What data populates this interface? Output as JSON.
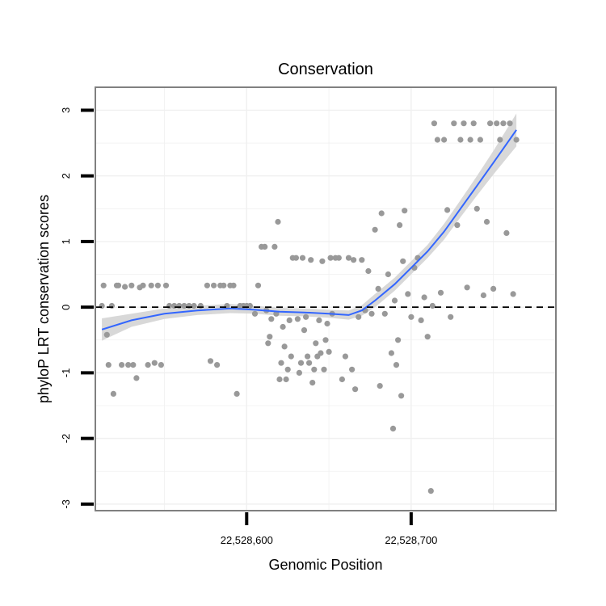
{
  "chart_data": {
    "type": "scatter",
    "title": "Conservation",
    "xlabel": "Genomic Position",
    "ylabel": "phyloP LRT conservation scores",
    "xlim": [
      22528508,
      22528788
    ],
    "ylim": [
      -3.1,
      3.35
    ],
    "x_ticks": [
      22528600,
      22528700
    ],
    "x_tick_labels": [
      "22,528,600",
      "22,528,700"
    ],
    "y_ticks": [
      -3,
      -2,
      -1,
      0,
      1,
      2,
      3
    ],
    "y_tick_labels": [
      "-3",
      "-2",
      "-1",
      "0",
      "1",
      "2",
      "3"
    ],
    "reference_line_y": 0,
    "grid": true,
    "colors": {
      "points": "#999999",
      "smooth_line": "#3366ff",
      "confidence_band": "#d4d4d4",
      "reference_line": "#000000",
      "panel_border": "#808080",
      "grid": "#f0f0f0"
    },
    "points": [
      [
        22528512,
        0.02
      ],
      [
        22528513,
        0.33
      ],
      [
        22528515,
        -0.42
      ],
      [
        22528516,
        -0.88
      ],
      [
        22528518,
        0.02
      ],
      [
        22528519,
        -1.32
      ],
      [
        22528521,
        0.33
      ],
      [
        22528522,
        0.33
      ],
      [
        22528524,
        -0.88
      ],
      [
        22528526,
        0.31
      ],
      [
        22528528,
        -0.88
      ],
      [
        22528530,
        0.33
      ],
      [
        22528531,
        -0.88
      ],
      [
        22528533,
        -1.08
      ],
      [
        22528535,
        0.3
      ],
      [
        22528537,
        0.33
      ],
      [
        22528540,
        -0.88
      ],
      [
        22528542,
        0.33
      ],
      [
        22528544,
        -0.85
      ],
      [
        22528546,
        0.33
      ],
      [
        22528548,
        -0.88
      ],
      [
        22528551,
        0.33
      ],
      [
        22528553,
        0.02
      ],
      [
        22528556,
        0.02
      ],
      [
        22528559,
        0.02
      ],
      [
        22528562,
        0.02
      ],
      [
        22528565,
        0.02
      ],
      [
        22528568,
        0.02
      ],
      [
        22528572,
        0.02
      ],
      [
        22528576,
        0.33
      ],
      [
        22528578,
        -0.82
      ],
      [
        22528580,
        0.33
      ],
      [
        22528582,
        -0.88
      ],
      [
        22528584,
        0.33
      ],
      [
        22528586,
        0.33
      ],
      [
        22528588,
        0.02
      ],
      [
        22528590,
        0.33
      ],
      [
        22528592,
        0.33
      ],
      [
        22528594,
        -1.32
      ],
      [
        22528596,
        0.02
      ],
      [
        22528598,
        0.02
      ],
      [
        22528600,
        0.02
      ],
      [
        22528602,
        0.02
      ],
      [
        22528605,
        -0.1
      ],
      [
        22528607,
        0.33
      ],
      [
        22528609,
        0.92
      ],
      [
        22528611,
        0.92
      ],
      [
        22528612,
        -0.05
      ],
      [
        22528613,
        -0.55
      ],
      [
        22528614,
        -0.45
      ],
      [
        22528615,
        -0.18
      ],
      [
        22528617,
        0.92
      ],
      [
        22528618,
        -0.1
      ],
      [
        22528619,
        1.3
      ],
      [
        22528620,
        -1.1
      ],
      [
        22528621,
        -0.85
      ],
      [
        22528622,
        -0.3
      ],
      [
        22528623,
        -0.6
      ],
      [
        22528624,
        -1.1
      ],
      [
        22528625,
        -0.95
      ],
      [
        22528626,
        -0.2
      ],
      [
        22528627,
        -0.75
      ],
      [
        22528628,
        0.75
      ],
      [
        22528630,
        0.75
      ],
      [
        22528631,
        -0.18
      ],
      [
        22528632,
        -1.0
      ],
      [
        22528633,
        -0.85
      ],
      [
        22528634,
        0.75
      ],
      [
        22528635,
        -0.35
      ],
      [
        22528636,
        -0.15
      ],
      [
        22528637,
        -0.75
      ],
      [
        22528638,
        -0.85
      ],
      [
        22528639,
        0.72
      ],
      [
        22528640,
        -1.15
      ],
      [
        22528641,
        -0.95
      ],
      [
        22528642,
        -0.55
      ],
      [
        22528643,
        -0.75
      ],
      [
        22528644,
        -0.2
      ],
      [
        22528645,
        -0.7
      ],
      [
        22528646,
        0.7
      ],
      [
        22528647,
        -0.95
      ],
      [
        22528648,
        -0.5
      ],
      [
        22528649,
        -0.25
      ],
      [
        22528650,
        -0.68
      ],
      [
        22528651,
        0.75
      ],
      [
        22528652,
        -0.1
      ],
      [
        22528654,
        0.75
      ],
      [
        22528656,
        0.75
      ],
      [
        22528658,
        -1.1
      ],
      [
        22528660,
        -0.75
      ],
      [
        22528662,
        0.75
      ],
      [
        22528664,
        -0.95
      ],
      [
        22528665,
        0.72
      ],
      [
        22528666,
        -1.25
      ],
      [
        22528668,
        -0.15
      ],
      [
        22528670,
        0.72
      ],
      [
        22528672,
        -0.05
      ],
      [
        22528674,
        0.55
      ],
      [
        22528676,
        -0.1
      ],
      [
        22528678,
        1.18
      ],
      [
        22528680,
        0.28
      ],
      [
        22528681,
        -1.2
      ],
      [
        22528682,
        1.43
      ],
      [
        22528684,
        -0.1
      ],
      [
        22528686,
        0.5
      ],
      [
        22528688,
        -0.7
      ],
      [
        22528689,
        -1.85
      ],
      [
        22528690,
        0.1
      ],
      [
        22528691,
        -0.88
      ],
      [
        22528692,
        -0.5
      ],
      [
        22528693,
        1.25
      ],
      [
        22528694,
        -1.35
      ],
      [
        22528695,
        0.7
      ],
      [
        22528696,
        1.47
      ],
      [
        22528698,
        0.2
      ],
      [
        22528700,
        -0.15
      ],
      [
        22528702,
        0.6
      ],
      [
        22528704,
        0.75
      ],
      [
        22528706,
        -0.2
      ],
      [
        22528708,
        0.15
      ],
      [
        22528710,
        -0.45
      ],
      [
        22528712,
        -2.8
      ],
      [
        22528713,
        0.02
      ],
      [
        22528714,
        2.8
      ],
      [
        22528716,
        2.55
      ],
      [
        22528718,
        0.22
      ],
      [
        22528720,
        2.55
      ],
      [
        22528722,
        1.48
      ],
      [
        22528724,
        -0.15
      ],
      [
        22528726,
        2.8
      ],
      [
        22528728,
        1.25
      ],
      [
        22528730,
        2.55
      ],
      [
        22528732,
        2.8
      ],
      [
        22528734,
        0.3
      ],
      [
        22528736,
        2.55
      ],
      [
        22528738,
        2.8
      ],
      [
        22528740,
        1.5
      ],
      [
        22528742,
        2.55
      ],
      [
        22528744,
        0.18
      ],
      [
        22528746,
        1.3
      ],
      [
        22528748,
        2.8
      ],
      [
        22528750,
        0.28
      ],
      [
        22528752,
        2.8
      ],
      [
        22528754,
        2.55
      ],
      [
        22528756,
        2.8
      ],
      [
        22528758,
        1.13
      ],
      [
        22528760,
        2.8
      ],
      [
        22528762,
        0.2
      ],
      [
        22528764,
        2.55
      ]
    ],
    "smooth_fit": [
      [
        22528512,
        -0.34
      ],
      [
        22528530,
        -0.2
      ],
      [
        22528550,
        -0.1
      ],
      [
        22528570,
        -0.05
      ],
      [
        22528590,
        -0.02
      ],
      [
        22528605,
        -0.04
      ],
      [
        22528620,
        -0.07
      ],
      [
        22528635,
        -0.08
      ],
      [
        22528650,
        -0.1
      ],
      [
        22528662,
        -0.12
      ],
      [
        22528670,
        -0.05
      ],
      [
        22528678,
        0.1
      ],
      [
        22528690,
        0.35
      ],
      [
        22528700,
        0.6
      ],
      [
        22528710,
        0.85
      ],
      [
        22528720,
        1.15
      ],
      [
        22528730,
        1.5
      ],
      [
        22528740,
        1.85
      ],
      [
        22528750,
        2.2
      ],
      [
        22528764,
        2.7
      ]
    ],
    "band_halfwidth": [
      0.17,
      0.1,
      0.08,
      0.07,
      0.07,
      0.06,
      0.06,
      0.06,
      0.06,
      0.07,
      0.08,
      0.1,
      0.1,
      0.1,
      0.1,
      0.12,
      0.13,
      0.15,
      0.18,
      0.25
    ]
  }
}
